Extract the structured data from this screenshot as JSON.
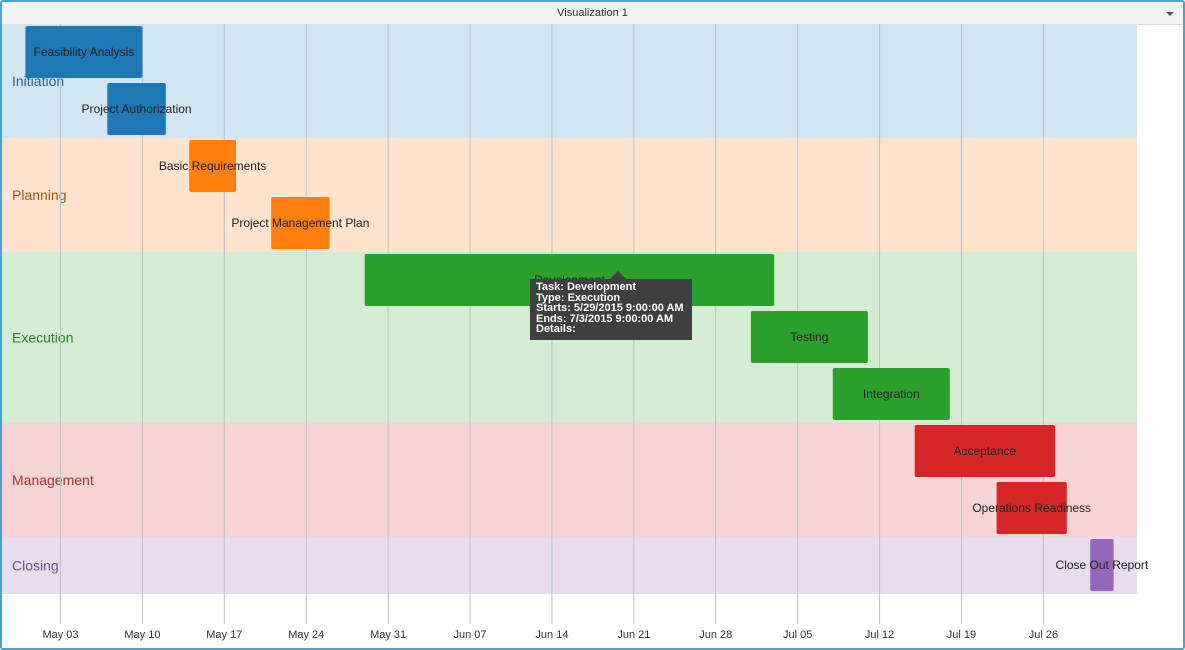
{
  "window": {
    "title": "Visualization 1",
    "menu_icon": "chevron-down-icon"
  },
  "chart_data": {
    "type": "gantt",
    "x_axis": {
      "start": "2015-04-28",
      "end": "2015-08-03",
      "ticks": [
        {
          "date": "2015-05-03",
          "label": "May 03"
        },
        {
          "date": "2015-05-10",
          "label": "May 10"
        },
        {
          "date": "2015-05-17",
          "label": "May 17"
        },
        {
          "date": "2015-05-24",
          "label": "May 24"
        },
        {
          "date": "2015-05-31",
          "label": "May 31"
        },
        {
          "date": "2015-06-07",
          "label": "Jun 07"
        },
        {
          "date": "2015-06-14",
          "label": "Jun 14"
        },
        {
          "date": "2015-06-21",
          "label": "Jun 21"
        },
        {
          "date": "2015-06-28",
          "label": "Jun 28"
        },
        {
          "date": "2015-07-05",
          "label": "Jul 05"
        },
        {
          "date": "2015-07-12",
          "label": "Jul 12"
        },
        {
          "date": "2015-07-19",
          "label": "Jul 19"
        },
        {
          "date": "2015-07-26",
          "label": "Jul 26"
        }
      ],
      "grid": true
    },
    "categories": [
      {
        "name": "Initiation",
        "band_color": "#d2e5f3",
        "text_color": "#31608a"
      },
      {
        "name": "Planning",
        "band_color": "#ffe3cc",
        "text_color": "#a15a19"
      },
      {
        "name": "Execution",
        "band_color": "#d4ecd4",
        "text_color": "#2f7a2f"
      },
      {
        "name": "Management",
        "band_color": "#f6d4d4",
        "text_color": "#a33333"
      },
      {
        "name": "Closing",
        "band_color": "#e8dcef",
        "text_color": "#6a5585"
      }
    ],
    "tasks": [
      {
        "name": "Feasibility Analysis",
        "category": "Initiation",
        "start": "2015-04-30",
        "end": "2015-05-10",
        "color": "#1f77b4"
      },
      {
        "name": "Project Authorization",
        "category": "Initiation",
        "start": "2015-05-07",
        "end": "2015-05-12",
        "color": "#1f77b4"
      },
      {
        "name": "Basic Requirements",
        "category": "Planning",
        "start": "2015-05-14",
        "end": "2015-05-18",
        "color": "#ff7f0e"
      },
      {
        "name": "Project Management Plan",
        "category": "Planning",
        "start": "2015-05-21",
        "end": "2015-05-26",
        "color": "#ff7f0e"
      },
      {
        "name": "Development",
        "category": "Execution",
        "start": "2015-05-29",
        "end": "2015-07-03",
        "color": "#2ca02c"
      },
      {
        "name": "Testing",
        "category": "Execution",
        "start": "2015-07-01",
        "end": "2015-07-11",
        "color": "#2ca02c"
      },
      {
        "name": "Integration",
        "category": "Execution",
        "start": "2015-07-08",
        "end": "2015-07-18",
        "color": "#2ca02c"
      },
      {
        "name": "Acceptance",
        "category": "Management",
        "start": "2015-07-15",
        "end": "2015-07-27",
        "color": "#d62728"
      },
      {
        "name": "Operations Readiness",
        "category": "Management",
        "start": "2015-07-22",
        "end": "2015-07-28",
        "color": "#d62728"
      },
      {
        "name": "Close Out Report",
        "category": "Closing",
        "start": "2015-07-30",
        "end": "2015-08-01",
        "color": "#9467bd"
      }
    ]
  },
  "tooltip": {
    "task": "Task: Development",
    "type": "Type: Execution",
    "starts": "Starts: 5/29/2015 9:00:00 AM",
    "ends": "Ends: 7/3/2015 9:00:00 AM",
    "details": "Details:"
  }
}
